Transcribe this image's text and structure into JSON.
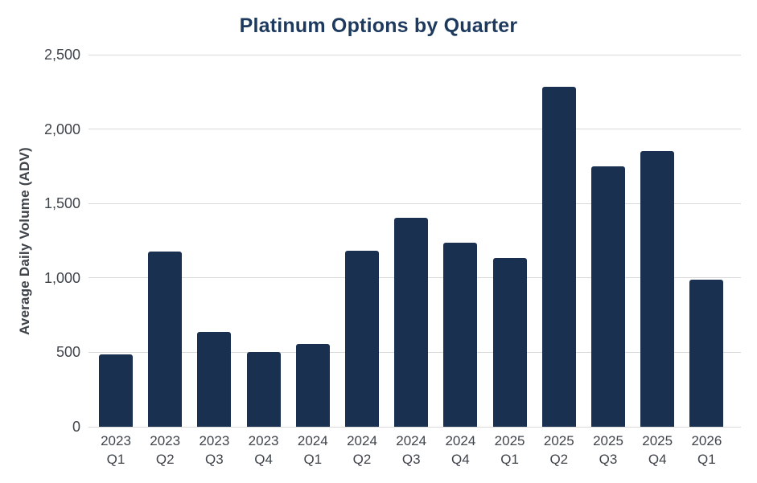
{
  "chart_data": {
    "type": "bar",
    "title": "Platinum Options by Quarter",
    "ylabel": "Average Daily Volume (ADV)",
    "categories": [
      [
        "2023",
        "Q1"
      ],
      [
        "2023",
        "Q2"
      ],
      [
        "2023",
        "Q3"
      ],
      [
        "2023",
        "Q4"
      ],
      [
        "2024",
        "Q1"
      ],
      [
        "2024",
        "Q2"
      ],
      [
        "2024",
        "Q3"
      ],
      [
        "2024",
        "Q4"
      ],
      [
        "2025",
        "Q1"
      ],
      [
        "2025",
        "Q2"
      ],
      [
        "2025",
        "Q3"
      ],
      [
        "2025",
        "Q4"
      ],
      [
        "2026",
        "Q1"
      ]
    ],
    "values": [
      485,
      1175,
      635,
      500,
      555,
      1180,
      1405,
      1235,
      1135,
      2285,
      1750,
      1850,
      990
    ],
    "ylim": [
      0,
      2500
    ],
    "yticks": [
      0,
      500,
      1000,
      1500,
      2000,
      2500
    ],
    "ytick_labels": [
      "0",
      "500",
      "1,000",
      "1,500",
      "2,000",
      "2,500"
    ],
    "grid": true,
    "legend": false,
    "colors": {
      "bar": "#1A3050",
      "title": "#1D3A5E",
      "grid": "#D9D9D9",
      "axis_text": "#3F444B",
      "background": "#FFFFFF"
    }
  }
}
